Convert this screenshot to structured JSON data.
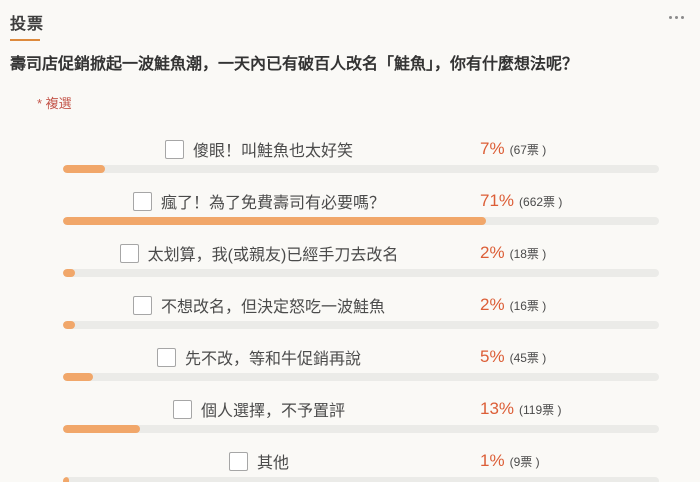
{
  "header": {
    "title": "投票",
    "more_icon": "ellipsis-more-options"
  },
  "question": "壽司店促銷掀起一波鮭魚潮，一天內已有破百人改名「鮭魚」，你有什麼想法呢？",
  "required_note": "* 複選",
  "poll": {
    "options": [
      {
        "label": "傻眼！叫鮭魚也太好笑",
        "percent": "7%",
        "votes": "(67票 )",
        "pct": 7,
        "checked": false
      },
      {
        "label": "瘋了！為了免費壽司有必要嗎？",
        "percent": "71%",
        "votes": "(662票 )",
        "pct": 71,
        "checked": false
      },
      {
        "label": "太划算，我(或親友)已經手刀去改名",
        "percent": "2%",
        "votes": "(18票 )",
        "pct": 2,
        "checked": false
      },
      {
        "label": "不想改名，但決定怒吃一波鮭魚",
        "percent": "2%",
        "votes": "(16票 )",
        "pct": 2,
        "checked": false
      },
      {
        "label": "先不改，等和牛促銷再說",
        "percent": "5%",
        "votes": "(45票 )",
        "pct": 5,
        "checked": false
      },
      {
        "label": "個人選擇，不予置評",
        "percent": "13%",
        "votes": "(119票 )",
        "pct": 13,
        "checked": false
      },
      {
        "label": "其他",
        "percent": "1%",
        "votes": "(9票 )",
        "pct": 1,
        "checked": false
      }
    ]
  },
  "colors": {
    "background": "#faf9f6",
    "accent_underline": "#dd8a3d",
    "bar_fill": "#f1a76a",
    "bar_track": "#ebebe8",
    "percent_text": "#dc5e37",
    "required_text": "#c4564b",
    "title_text": "#3d3d3d"
  }
}
